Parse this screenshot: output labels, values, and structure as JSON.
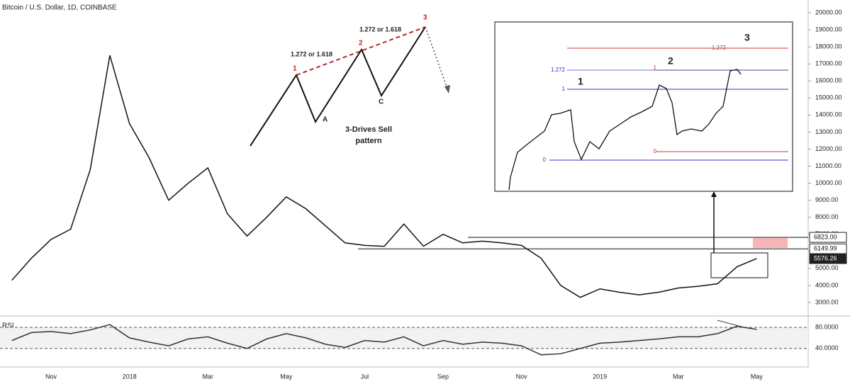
{
  "chart_data": {
    "type": "line",
    "title": "Bitcoin / U.S. Dollar, 1D, COINBASE",
    "categories": [
      null,
      null,
      "Nov",
      null,
      null,
      null,
      "2018",
      null,
      null,
      null,
      "Mar",
      null,
      null,
      null,
      "May",
      null,
      null,
      null,
      "Jul",
      null,
      null,
      null,
      "Sep",
      null,
      null,
      null,
      "Nov",
      null,
      null,
      null,
      "2019",
      null,
      null,
      null,
      "Mar",
      null,
      null,
      null,
      "May"
    ],
    "series": [
      {
        "name": "Bitcoin / U.S. Dollar",
        "color": "#111111",
        "values": [
          4300,
          5600,
          6700,
          7300,
          10800,
          17500,
          13500,
          11500,
          9000,
          10000,
          10900,
          8200,
          6900,
          8000,
          9200,
          8500,
          7500,
          6500,
          6350,
          6300,
          7600,
          6300,
          7000,
          6500,
          6600,
          6500,
          6350,
          5600,
          4000,
          3300,
          3800,
          3600,
          3450,
          3600,
          3850,
          3950,
          4100,
          5100,
          5576.26
        ]
      }
    ],
    "ylim": [
      2250,
      20750
    ],
    "yticks": [
      {
        "value": 20000,
        "label": "20000.00"
      },
      {
        "value": 19000,
        "label": "19000.00"
      },
      {
        "value": 18000,
        "label": "18000.00"
      },
      {
        "value": 17000,
        "label": "17000.00"
      },
      {
        "value": 16000,
        "label": "16000.00"
      },
      {
        "value": 15000,
        "label": "15000.00"
      },
      {
        "value": 14000,
        "label": "14000.00"
      },
      {
        "value": 13000,
        "label": "13000.00"
      },
      {
        "value": 12000,
        "label": "12000.00"
      },
      {
        "value": 11000,
        "label": "11000.00"
      },
      {
        "value": 10000,
        "label": "10000.00"
      },
      {
        "value": 9000,
        "label": "9000.00"
      },
      {
        "value": 8000,
        "label": "8000.00"
      },
      {
        "value": 7000,
        "label": "7000.00"
      },
      {
        "value": 6000,
        "label": "6000.00"
      },
      {
        "value": 5000,
        "label": "5000.00"
      },
      {
        "value": 4000,
        "label": "4000.00"
      },
      {
        "value": 3000,
        "label": "3000.00"
      }
    ],
    "price_levels": [
      {
        "value": 6823,
        "label": "6823.00"
      },
      {
        "value": 6149.99,
        "label": "6149.99"
      },
      {
        "value": 5576.26,
        "label": "5576.26"
      }
    ],
    "rsi": {
      "name": "RSI",
      "color": "#333333",
      "values": [
        55,
        70,
        72,
        68,
        75,
        85,
        60,
        52,
        45,
        58,
        62,
        50,
        40,
        58,
        68,
        60,
        48,
        42,
        55,
        52,
        62,
        45,
        55,
        48,
        52,
        50,
        45,
        28,
        30,
        40,
        50,
        52,
        55,
        58,
        62,
        62,
        68,
        82,
        76
      ],
      "ylim": [
        5,
        100
      ],
      "yticks": [
        {
          "value": 80,
          "label": "80.0000"
        },
        {
          "value": 40,
          "label": "40.0000"
        }
      ]
    },
    "pattern": {
      "drives": [
        "1",
        "2",
        "3"
      ],
      "corrections": [
        "A",
        "C"
      ],
      "ratio": "1.272 or 1.618",
      "caption": "3-Drives Sell",
      "caption2": "pattern"
    },
    "inset": {
      "fib_red": [
        "1.272",
        "1",
        "0"
      ],
      "fib_blue": [
        "1.272",
        "1",
        "0"
      ],
      "drives": [
        "1",
        "2",
        "3"
      ]
    }
  }
}
